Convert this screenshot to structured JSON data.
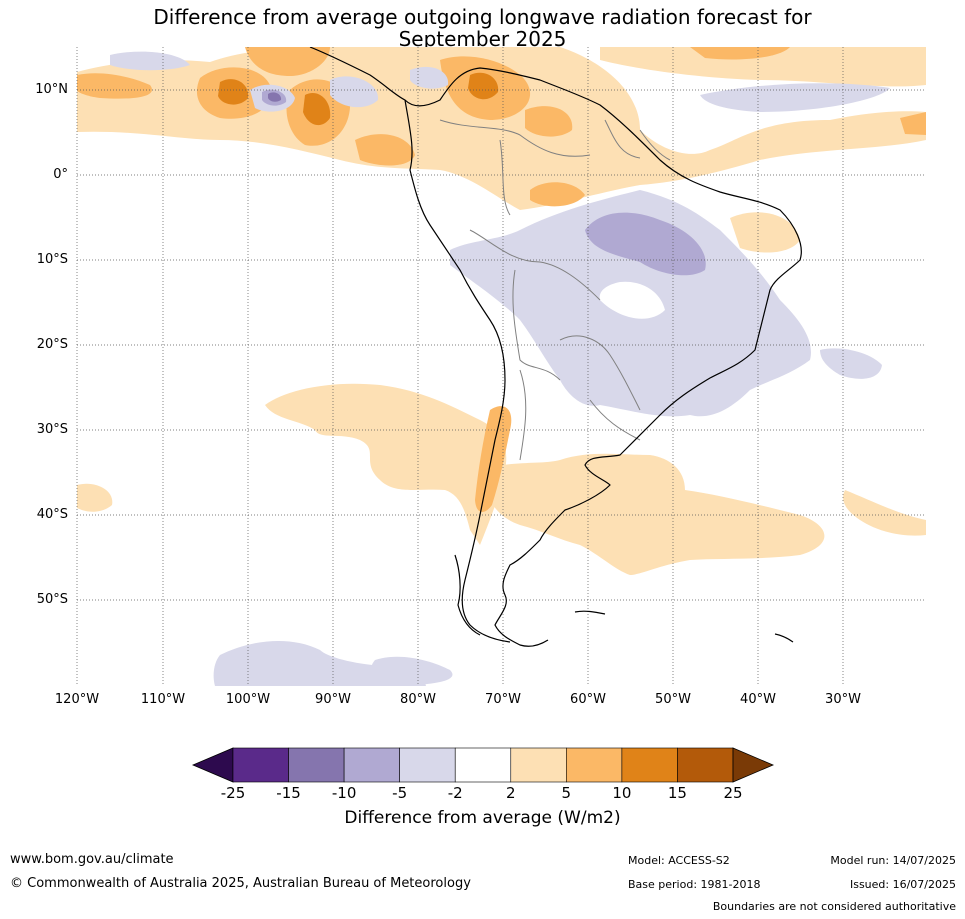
{
  "title": {
    "line1": "Difference from average outgoing longwave radiation forecast for",
    "line2": "September 2025"
  },
  "map": {
    "lat_labels": [
      "10°N",
      "0°",
      "10°S",
      "20°S",
      "30°S",
      "40°S",
      "50°S"
    ],
    "lon_labels": [
      "120°W",
      "110°W",
      "100°W",
      "90°W",
      "80°W",
      "70°W",
      "60°W",
      "50°W",
      "40°W",
      "30°W"
    ],
    "colors": {
      "ocean_land_bg": "#ffffff",
      "gridline": "#555555",
      "coastline": "#000000",
      "border": "#808080"
    }
  },
  "colorbar": {
    "ticks": [
      "-25",
      "-15",
      "-10",
      "-5",
      "-2",
      "2",
      "5",
      "10",
      "15",
      "25"
    ],
    "colors": [
      "#2d0a4e",
      "#5a2a8a",
      "#8575ae",
      "#b0a9d2",
      "#d8d8ea",
      "#ffffff",
      "#fde0b4",
      "#fbb866",
      "#e08318",
      "#b35a0a",
      "#7a3a06"
    ],
    "label": "Difference from average (W/m2)"
  },
  "footer": {
    "website": "www.bom.gov.au/climate",
    "copyright": "© Commonwealth of Australia 2025, Australian Bureau of Meteorology",
    "model": "Model: ACCESS-S2",
    "base_period": "Base period: 1981-2018",
    "model_run": "Model run: 14/07/2025",
    "issued": "Issued: 16/07/2025",
    "boundaries": "Boundaries are not considered authoritative"
  }
}
